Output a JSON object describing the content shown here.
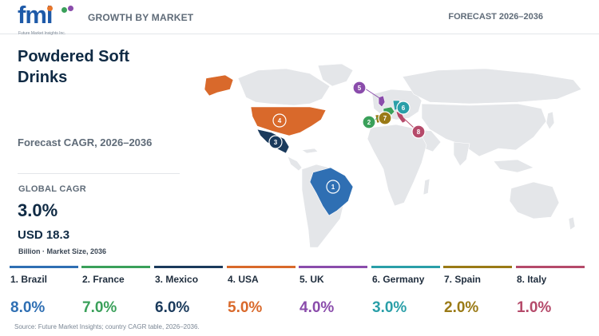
{
  "header": {
    "logo_text": "fmi",
    "logo_tagline": "Future Market Insights Inc.",
    "section_title": "GROWTH BY MARKET",
    "forecast_label": "FORECAST 2026–2036"
  },
  "summary": {
    "title": "Powdered Soft Drinks",
    "cagr_caption": "Forecast CAGR, 2026–2036",
    "global_cagr_label": "GLOBAL CAGR",
    "global_cagr_value": "3.0%",
    "market_size_value": "USD 18.3",
    "market_size_caption": "Billion · Market Size, 2036"
  },
  "colors": {
    "brazil": "#2f6fb3",
    "france": "#3aa05a",
    "mexico": "#1a3a5c",
    "usa": "#d9692b",
    "uk": "#8a4cab",
    "germany": "#2a9fa8",
    "spain": "#9a7a16",
    "italy": "#b54a6a",
    "land": "#e4e6e9"
  },
  "countries": [
    {
      "rank": "1",
      "name": "1. Brazil",
      "cagr": "8.0%",
      "color": "#2f6fb3",
      "icon": "map-pin-icon"
    },
    {
      "rank": "2",
      "name": "2. France",
      "cagr": "7.0%",
      "color": "#3aa05a",
      "icon": "map-pin-icon"
    },
    {
      "rank": "3",
      "name": "3. Mexico",
      "cagr": "6.0%",
      "color": "#1a3a5c",
      "icon": "map-pin-icon"
    },
    {
      "rank": "4",
      "name": "4. USA",
      "cagr": "5.0%",
      "color": "#d9692b",
      "icon": "map-pin-icon"
    },
    {
      "rank": "5",
      "name": "5. UK",
      "cagr": "4.0%",
      "color": "#8a4cab",
      "icon": "map-pin-icon"
    },
    {
      "rank": "6",
      "name": "6. Germany",
      "cagr": "3.0%",
      "color": "#2a9fa8",
      "icon": "map-pin-icon"
    },
    {
      "rank": "7",
      "name": "7. Spain",
      "cagr": "2.0%",
      "color": "#9a7a16",
      "icon": "map-pin-icon"
    },
    {
      "rank": "8",
      "name": "8. Italy",
      "cagr": "1.0%",
      "color": "#b54a6a",
      "icon": "map-pin-icon"
    }
  ],
  "source": "Source: Future Market Insights; country CAGR table, 2026–2036."
}
